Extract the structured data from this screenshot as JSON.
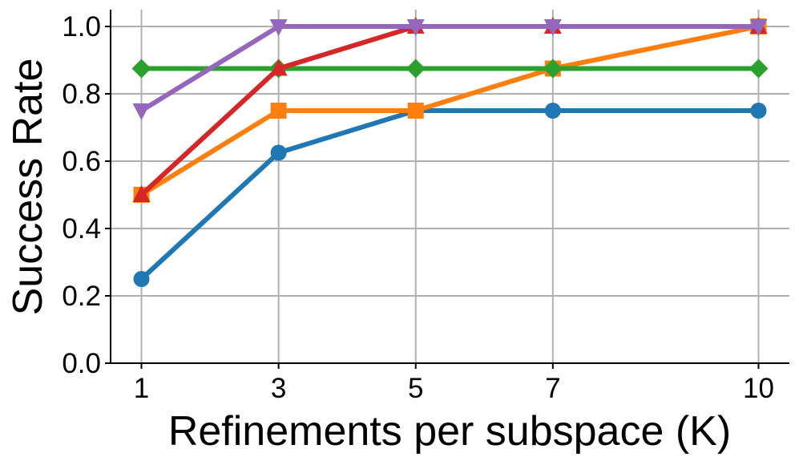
{
  "chart_data": {
    "type": "line",
    "title": "",
    "xlabel": "Refinements per subspace (K)",
    "ylabel": "Success Rate",
    "x": [
      1,
      3,
      5,
      7,
      10
    ],
    "xticks": [
      "1",
      "3",
      "5",
      "7",
      "10"
    ],
    "yticks": [
      "0.0",
      "0.2",
      "0.4",
      "0.6",
      "0.8",
      "1.0"
    ],
    "xlim": [
      0.55,
      10.45
    ],
    "ylim": [
      0,
      1.05
    ],
    "grid": true,
    "legend": "none",
    "series": [
      {
        "color": "#1f77b4",
        "marker": "circle",
        "values": [
          0.25,
          0.625,
          0.75,
          0.75,
          0.75
        ]
      },
      {
        "color": "#ff7f0e",
        "marker": "square",
        "values": [
          0.5,
          0.75,
          0.75,
          0.875,
          1.0
        ]
      },
      {
        "color": "#2ca02c",
        "marker": "diamond",
        "values": [
          0.875,
          0.875,
          0.875,
          0.875,
          0.875
        ]
      },
      {
        "color": "#d62728",
        "marker": "triangle-up",
        "values": [
          0.5,
          0.875,
          1.0,
          1.0,
          1.0
        ]
      },
      {
        "color": "#9467bd",
        "marker": "triangle-down",
        "values": [
          0.75,
          1.0,
          1.0,
          1.0,
          1.0
        ]
      }
    ]
  }
}
